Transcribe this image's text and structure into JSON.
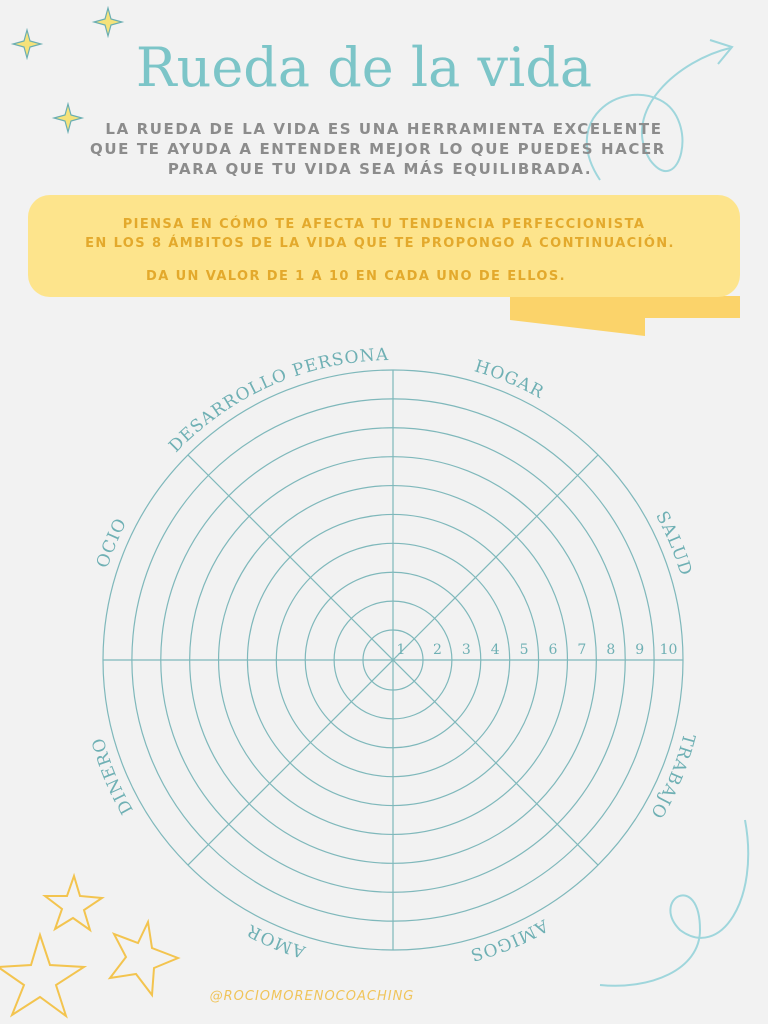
{
  "title": "Rueda de la vida",
  "intro": [
    "LA RUEDA DE LA VIDA ES UNA HERRAMIENTA EXCELENTE",
    "QUE TE AYUDA A ENTENDER MEJOR LO QUE PUEDES HACER",
    "PARA QUE TU VIDA SEA MÁS EQUILIBRADA."
  ],
  "banner": [
    "PIENSA EN CÓMO TE AFECTA TU TENDENCIA PERFECCIONISTA",
    "EN LOS 8 ÁMBITOS DE LA VIDA QUE TE PROPONGO A CONTINUACIÓN.",
    "DA UN VALOR DE 1 A 10 EN CADA UNO DE ELLOS."
  ],
  "areas": [
    "HOGAR",
    "SALUD",
    "TRABAJO",
    "AMIGOS",
    "AMOR",
    "DINERO",
    "OCIO",
    "DESARROLLO PERSONAL"
  ],
  "scale": [
    "1",
    "2",
    "3",
    "4",
    "5",
    "6",
    "7",
    "8",
    "9",
    "10"
  ],
  "footer": "@ROCIOMORENOCOACHING"
}
